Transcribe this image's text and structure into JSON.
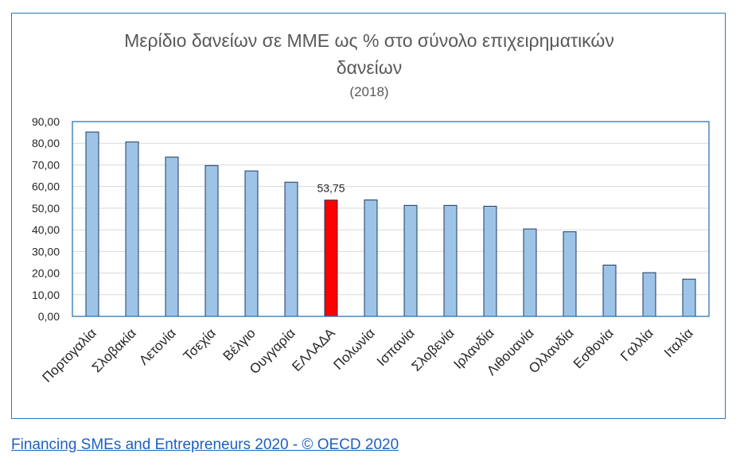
{
  "chart_data": {
    "type": "bar",
    "title_line1": "Μερίδιο δανείων σε ΜΜΕ ως % στο σύνολο επιχειρηματικών",
    "title_line2": "δανείων",
    "subtitle": "(2018)",
    "categories": [
      "Πορτογαλία",
      "Σλοβακία",
      "Λετονία",
      "Τσεχία",
      "Βέλγιο",
      "Ουγγαρία",
      "ΕΛΛΑΔΑ",
      "Πολωνία",
      "Ισπανία",
      "Σλοβενία",
      "Ιρλανδία",
      "Λιθουανία",
      "Ολλανδία",
      "Εσθονία",
      "Γαλλία",
      "Ιταλία"
    ],
    "values": [
      85.2,
      80.6,
      73.6,
      69.7,
      67.2,
      62.0,
      53.75,
      53.8,
      51.3,
      51.3,
      50.9,
      40.4,
      39.1,
      23.7,
      20.2,
      17.2
    ],
    "highlight_index": 6,
    "highlight_label": "53,75",
    "ylim": [
      0,
      90
    ],
    "yticks": [
      "0,00",
      "10,00",
      "20,00",
      "30,00",
      "40,00",
      "50,00",
      "60,00",
      "70,00",
      "80,00",
      "90,00"
    ],
    "bar_color": "#9dc3e6",
    "bar_edge": "#1f3864",
    "highlight_color": "#ff0000",
    "grid": true
  },
  "source": {
    "link_text": "Financing SMEs and Entrepreneurs 2020 - © OECD 2020"
  }
}
